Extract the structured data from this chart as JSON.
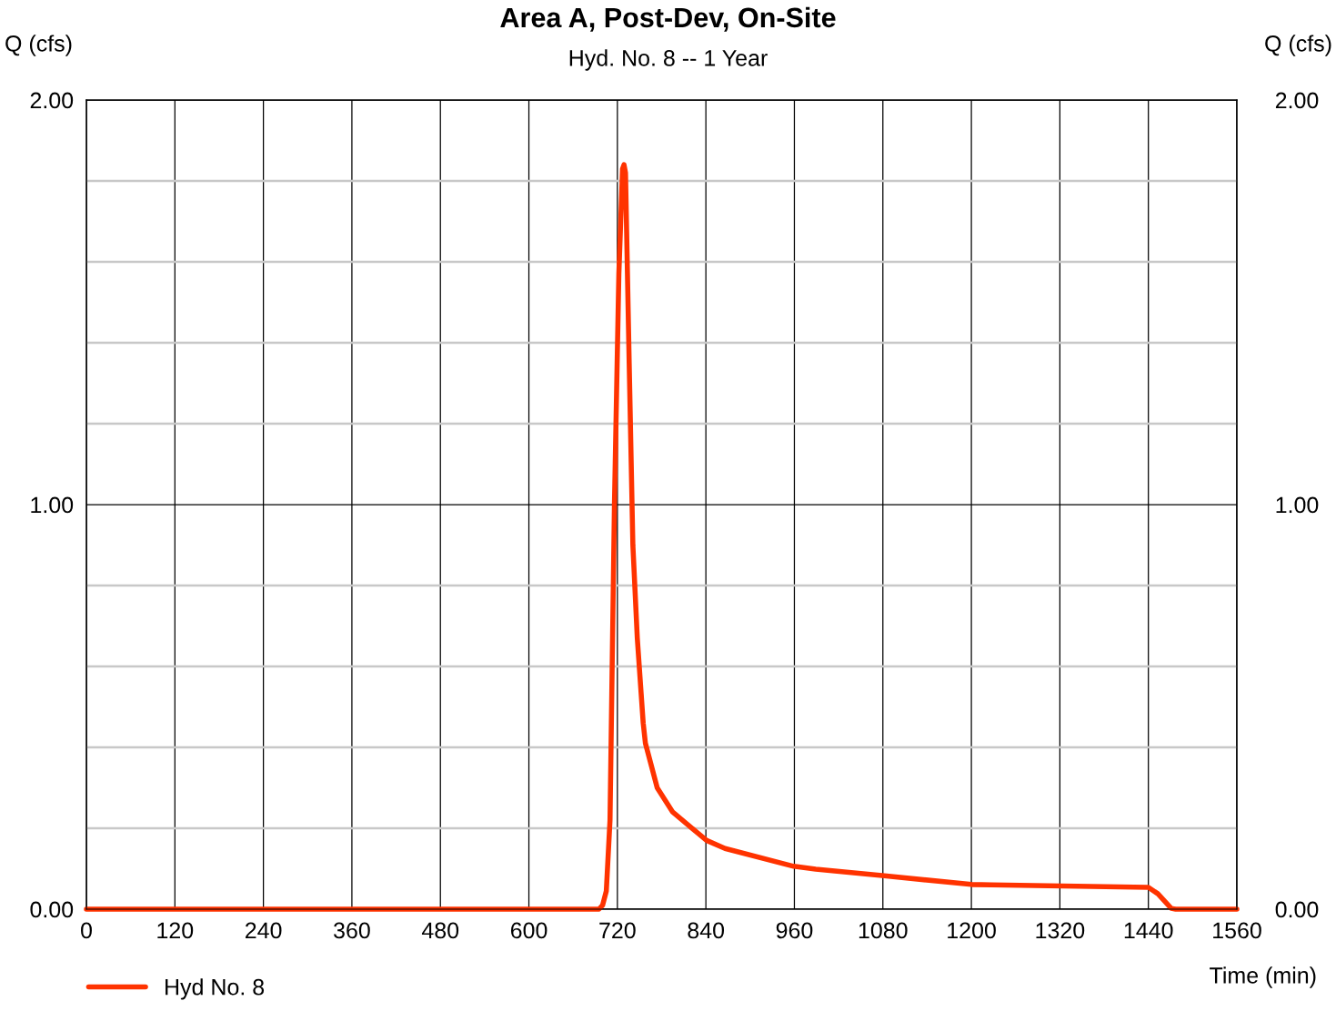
{
  "chart_data": {
    "type": "line",
    "title": "Area A, Post-Dev, On-Site",
    "subtitle": "Hyd. No. 8 -- 1 Year",
    "xlabel": "Time (min)",
    "ylabel": "Q (cfs)",
    "y2label": "Q (cfs)",
    "series": [
      {
        "name": "Hyd No. 8",
        "color": "#ff3300",
        "x": [
          0,
          695,
          700,
          705,
          710,
          716,
          722,
          727,
          729,
          731,
          736,
          741,
          747,
          755,
          758,
          774,
          795,
          841,
          866,
          959,
          989,
          1079,
          1200,
          1227,
          1440,
          1453,
          1471,
          1477,
          1560
        ],
        "values": [
          0,
          0,
          0.01,
          0.045,
          0.22,
          1.0,
          1.57,
          1.83,
          1.84,
          1.82,
          1.35,
          0.9,
          0.67,
          0.46,
          0.41,
          0.3,
          0.24,
          0.17,
          0.15,
          0.106,
          0.099,
          0.083,
          0.061,
          0.06,
          0.054,
          0.038,
          0.002,
          0,
          0
        ]
      }
    ],
    "xlim": [
      0,
      1560
    ],
    "xticks": [
      0,
      120,
      240,
      360,
      480,
      600,
      720,
      840,
      960,
      1080,
      1200,
      1320,
      1440,
      1560
    ],
    "ylim": [
      0,
      2
    ],
    "yticks": [
      {
        "value": 0,
        "label": "0.00"
      },
      {
        "value": 0.2,
        "label": null
      },
      {
        "value": 0.4,
        "label": null
      },
      {
        "value": 0.6,
        "label": null
      },
      {
        "value": 0.8,
        "label": null
      },
      {
        "value": 1,
        "label": "1.00"
      },
      {
        "value": 1.2,
        "label": null
      },
      {
        "value": 1.4,
        "label": null
      },
      {
        "value": 1.6,
        "label": null
      },
      {
        "value": 1.8,
        "label": null
      },
      {
        "value": 2,
        "label": "2.00"
      }
    ],
    "y2lim": [
      0,
      2
    ],
    "y2ticks": [
      {
        "value": 0,
        "label": "0.00"
      },
      {
        "value": 1,
        "label": "1.00"
      },
      {
        "value": 2,
        "label": "2.00"
      }
    ],
    "grid": true,
    "legend": "bottom left",
    "marker": "none",
    "line_style": "solid"
  }
}
